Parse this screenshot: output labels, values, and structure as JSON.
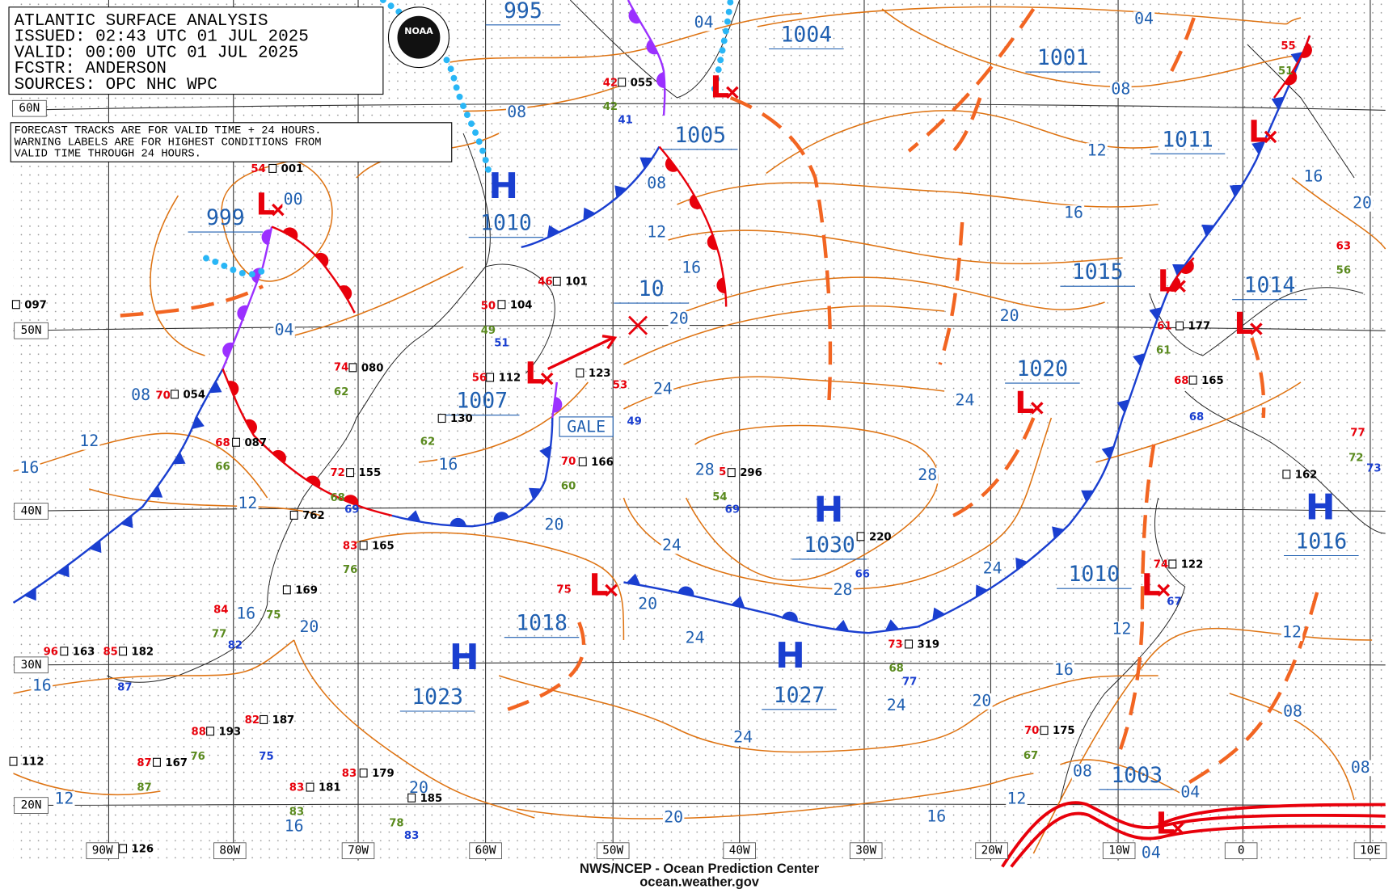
{
  "header": {
    "lines": [
      "ATLANTIC SURFACE ANALYSIS",
      "ISSUED: 02:43 UTC 01 JUL 2025",
      "VALID:  00:00 UTC 01 JUL 2025",
      "FCSTR:  ANDERSON",
      "SOURCES: OPC NHC WPC"
    ]
  },
  "note": {
    "lines": [
      "FORECAST TRACKS ARE FOR VALID TIME + 24 HOURS.",
      "WARNING LABELS ARE FOR HIGHEST CONDITIONS FROM",
      "VALID TIME THROUGH 24 HOURS."
    ]
  },
  "logo": "NOAA",
  "centers": [
    {
      "symbol": "H",
      "pressure": "1010"
    },
    {
      "symbol": "L",
      "pressure": "999"
    },
    {
      "symbol": "L",
      "pressure": "1005"
    },
    {
      "pressure": "995"
    },
    {
      "pressure": "1004"
    },
    {
      "pressure": "1001"
    },
    {
      "symbol": "L",
      "pressure": "1011"
    },
    {
      "symbol": "L",
      "pressure": "1015"
    },
    {
      "symbol": "L",
      "pressure": "1014"
    },
    {
      "symbol": "L",
      "pressure": "1020"
    },
    {
      "symbol": "L",
      "pressure": "1007"
    },
    {
      "pressure": "10"
    },
    {
      "symbol": "H",
      "pressure": "1030"
    },
    {
      "symbol": "H",
      "pressure": "1016"
    },
    {
      "symbol": "L",
      "pressure": "1010"
    },
    {
      "symbol": "L",
      "pressure": "1018"
    },
    {
      "symbol": "H",
      "pressure": "1023"
    },
    {
      "symbol": "H",
      "pressure": "1027"
    },
    {
      "symbol": "L",
      "pressure": "1003"
    }
  ],
  "isobar_labels": [
    "08",
    "04",
    "04",
    "08",
    "12",
    "08",
    "12",
    "16",
    "16",
    "16",
    "20",
    "00",
    "04",
    "08",
    "12",
    "16",
    "12",
    "20",
    "24",
    "20",
    "24",
    "28",
    "28",
    "16",
    "20",
    "24",
    "28",
    "24",
    "20",
    "24",
    "20",
    "16",
    "16",
    "12",
    "16",
    "20",
    "20",
    "24",
    "24",
    "20",
    "16",
    "12",
    "12",
    "08",
    "08",
    "08",
    "04",
    "04",
    "12",
    "16"
  ],
  "warning": "GALE",
  "latitude_labels": [
    "60N",
    "50N",
    "40N",
    "30N",
    "20N"
  ],
  "longitude_labels": [
    "90W",
    "80W",
    "70W",
    "60W",
    "50W",
    "40W",
    "30W",
    "20W",
    "10W",
    "0",
    "10E"
  ],
  "stations": {
    "ids": [
      "097",
      "001",
      "054",
      "087",
      "080",
      "155",
      "104",
      "101",
      "112",
      "123",
      "130",
      "166",
      "296",
      "220",
      "319",
      "162",
      "177",
      "165",
      "122",
      "175",
      "762",
      "165",
      "169",
      "163",
      "182",
      "193",
      "187",
      "167",
      "179",
      "181",
      "112",
      "126",
      "055",
      "185"
    ],
    "temperatures": [
      "50",
      "74",
      "72",
      "83",
      "84",
      "96",
      "85",
      "88",
      "82",
      "87",
      "83",
      "83",
      "70",
      "68",
      "56",
      "46",
      "53",
      "70",
      "5",
      "75",
      "73",
      "61",
      "68",
      "74",
      "70",
      "55",
      "63",
      "77",
      "42",
      "54"
    ],
    "dewpoints": [
      "49",
      "62",
      "68",
      "76",
      "77",
      "75",
      "76",
      "87",
      "83",
      "78",
      "66",
      "62",
      "60",
      "54",
      "68",
      "61",
      "67",
      "51",
      "56",
      "72",
      "42"
    ],
    "other": [
      "51",
      "69",
      "82",
      "87",
      "75",
      "83",
      "49",
      "69",
      "66",
      "77",
      "68",
      "67",
      "73",
      "41"
    ]
  },
  "footer": [
    "NWS/NCEP - Ocean Prediction Center",
    "ocean.weather.gov"
  ]
}
